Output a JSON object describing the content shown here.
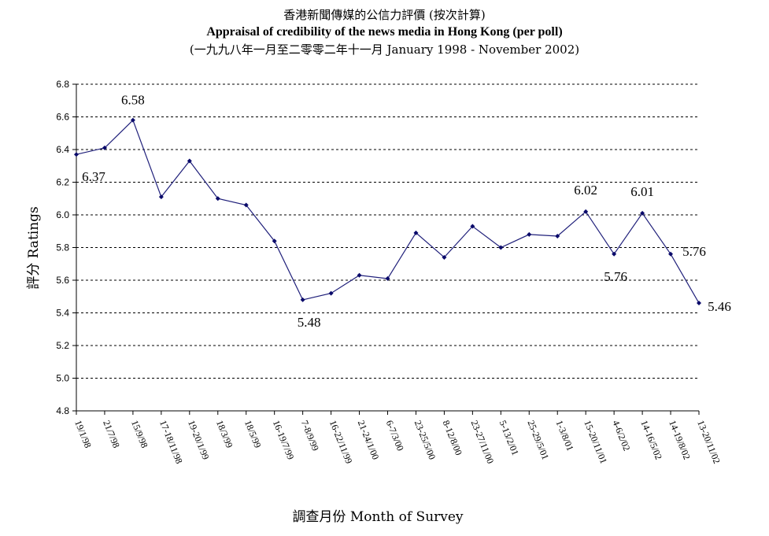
{
  "chart_data": {
    "type": "line",
    "title": "香港新聞傳媒的公信力評價 (按次計算)",
    "subtitle": "Appraisal of credibility of the news media in Hong Kong (per poll)",
    "subtitle2": "(一九九八年一月至二零零二年十一月 January 1998 - November 2002)",
    "xlabel": "調查月份 Month of Survey",
    "ylabel": "評分 Ratings",
    "ylim": [
      4.8,
      6.8
    ],
    "yticks": [
      "4.8",
      "5.0",
      "5.2",
      "5.4",
      "5.6",
      "5.8",
      "6.0",
      "6.2",
      "6.4",
      "6.6",
      "6.8"
    ],
    "grid": true,
    "line_color": "#1f1f7a",
    "categories": [
      "19/1/98",
      "21/7/98",
      "15/9/98",
      "17-18/11/98",
      "19-20/1/99",
      "18/3/99",
      "18/5/99",
      "16-19/7/99",
      "7-8/9/99",
      "16-22/11/99",
      "21-24/1/00",
      "6-7/3/00",
      "23-25/5/00",
      "8-12/8/00",
      "23-27/11/00",
      "5-13/2/01",
      "25-29/5/01",
      "1-3/8/01",
      "15-20/11/01",
      "4-6/2/02",
      "14-16/5/02",
      "14-19/8/02",
      "13-20/11/02"
    ],
    "values": [
      6.37,
      6.41,
      6.58,
      6.11,
      6.33,
      6.1,
      6.06,
      5.84,
      5.48,
      5.52,
      5.63,
      5.61,
      5.89,
      5.74,
      5.93,
      5.8,
      5.88,
      5.87,
      6.02,
      5.76,
      6.01,
      5.76,
      5.46
    ],
    "data_labels": [
      {
        "index": 0,
        "text": "6.37"
      },
      {
        "index": 2,
        "text": "6.58"
      },
      {
        "index": 8,
        "text": "5.48"
      },
      {
        "index": 18,
        "text": "6.02"
      },
      {
        "index": 19,
        "text": "5.76"
      },
      {
        "index": 20,
        "text": "6.01"
      },
      {
        "index": 21,
        "text": "5.76"
      },
      {
        "index": 22,
        "text": "5.46"
      }
    ]
  }
}
